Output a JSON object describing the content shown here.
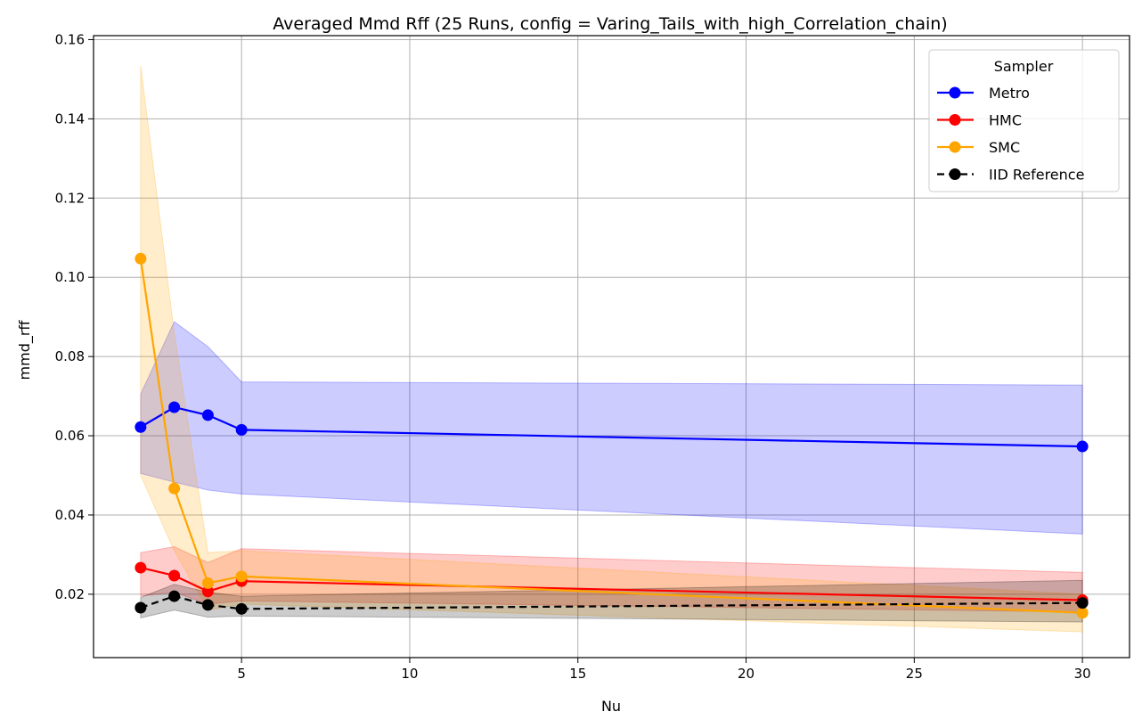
{
  "chart_data": {
    "type": "line",
    "title": "Averaged Mmd Rff (25 Runs, config = Varing_Tails_with_high_Correlation_chain)",
    "xlabel": "Nu",
    "ylabel": "mmd_rff",
    "xlim": [
      0.6,
      31.4
    ],
    "ylim": [
      0.004,
      0.161
    ],
    "xticks": [
      5,
      10,
      15,
      20,
      25,
      30
    ],
    "xtick_labels": [
      "5",
      "10",
      "15",
      "20",
      "25",
      "30"
    ],
    "yticks": [
      0.02,
      0.04,
      0.06,
      0.08,
      0.1,
      0.12,
      0.14,
      0.16
    ],
    "ytick_labels": [
      "0.02",
      "0.04",
      "0.06",
      "0.08",
      "0.10",
      "0.12",
      "0.14",
      "0.16"
    ],
    "grid": true,
    "legend": {
      "title": "Sampler",
      "position": "top-right"
    },
    "x": [
      2,
      3,
      4,
      5,
      30
    ],
    "series": [
      {
        "name": "Metro",
        "color": "#0000ff",
        "dashed": false,
        "values": [
          0.0622,
          0.0672,
          0.0652,
          0.0615,
          0.0573
        ],
        "lower": [
          0.0505,
          0.0483,
          0.0463,
          0.0453,
          0.0352
        ],
        "upper": [
          0.0705,
          0.0888,
          0.0825,
          0.0736,
          0.0728
        ]
      },
      {
        "name": "HMC",
        "color": "#ff0000",
        "dashed": false,
        "values": [
          0.0267,
          0.0247,
          0.0207,
          0.0233,
          0.0185
        ],
        "lower": [
          0.0195,
          0.0205,
          0.0175,
          0.0183,
          0.0155
        ],
        "upper": [
          0.0305,
          0.032,
          0.028,
          0.0315,
          0.0255
        ]
      },
      {
        "name": "SMC",
        "color": "#ffa500",
        "dashed": false,
        "values": [
          0.1047,
          0.0467,
          0.0228,
          0.0245,
          0.0153
        ],
        "lower": [
          0.05,
          0.031,
          0.016,
          0.0175,
          0.0105
        ],
        "upper": [
          0.1535,
          0.086,
          0.0305,
          0.031,
          0.02
        ]
      },
      {
        "name": "IID Reference",
        "color": "#000000",
        "dashed": true,
        "values": [
          0.0166,
          0.0195,
          0.0173,
          0.0163,
          0.0178
        ],
        "lower": [
          0.014,
          0.016,
          0.0142,
          0.0145,
          0.013
        ],
        "upper": [
          0.0192,
          0.0225,
          0.0205,
          0.0195,
          0.0235
        ]
      }
    ]
  }
}
